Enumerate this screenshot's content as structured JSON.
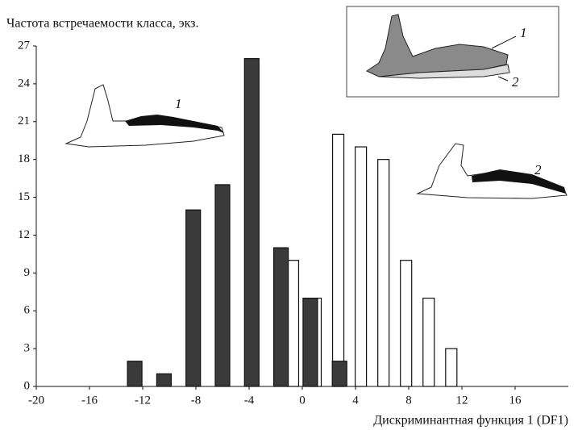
{
  "chart_data": {
    "type": "bar",
    "title": "Частота встречаемости класса, экз.",
    "x_label": "Дискриминантная функция 1 (DF1)",
    "series": [
      {
        "color": "#ffffff",
        "x": [
          -0.7,
          1.0,
          2.7,
          4.4,
          6.1,
          7.8,
          9.5,
          11.2
        ],
        "values": [
          10,
          7,
          20,
          19,
          18,
          10,
          7,
          3
        ]
      },
      {
        "color": "#3a3a3a",
        "x": [
          -12.6,
          -10.4,
          -8.2,
          -6.0,
          -3.8,
          -1.6,
          0.6,
          2.8
        ],
        "values": [
          2,
          1,
          14,
          16,
          26,
          11,
          7,
          2
        ]
      }
    ],
    "xlim": [
      -20,
      20
    ],
    "xticks": [
      -20,
      -16,
      -12,
      -8,
      -4,
      0,
      4,
      8,
      12,
      16
    ],
    "ylim": [
      0,
      27
    ],
    "yticks": [
      0,
      3,
      6,
      9,
      12,
      15,
      18,
      21,
      24,
      27
    ],
    "grid": false,
    "annotations": [
      "1",
      "2",
      "1",
      "2"
    ]
  }
}
